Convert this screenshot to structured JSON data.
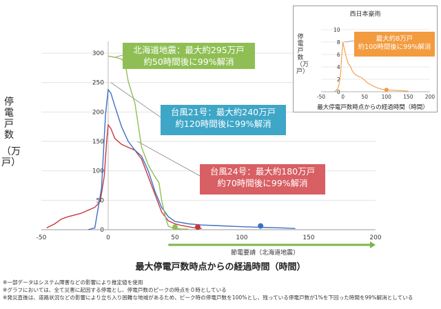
{
  "chart_data": [
    {
      "type": "line",
      "xlabel": "最大停電戸数時点からの経過時間（時間）",
      "ylabel": "停電戸数（万戸）",
      "xlim": [
        -50,
        200
      ],
      "ylim": [
        0,
        320
      ],
      "xticks": [
        "-50",
        "0",
        "50",
        "100",
        "150",
        "200"
      ],
      "yticks": [
        "0",
        "50",
        "100",
        "150",
        "200",
        "250",
        "300"
      ],
      "series": [
        {
          "name": "北海道地震",
          "color": "#8fbf54",
          "x": [
            0,
            5,
            10,
            12,
            13,
            15,
            20,
            22,
            25,
            30,
            35,
            38,
            40,
            43,
            45,
            48,
            50,
            55,
            60
          ],
          "y": [
            295,
            293,
            290,
            285,
            278,
            252,
            215,
            185,
            140,
            110,
            90,
            80,
            50,
            20,
            6,
            3,
            2,
            1,
            1
          ],
          "marker": {
            "x": 50,
            "y": 2
          }
        },
        {
          "name": "台風21号",
          "color": "#3f6fc3",
          "x": [
            -15,
            -10,
            -5,
            -2,
            0,
            2,
            5,
            10,
            15,
            20,
            25,
            30,
            35,
            40,
            45,
            50,
            60,
            70,
            80,
            100,
            115,
            130,
            140
          ],
          "y": [
            0,
            3,
            70,
            195,
            238,
            232,
            210,
            175,
            150,
            135,
            125,
            100,
            65,
            38,
            22,
            14,
            10,
            8,
            7,
            5,
            4,
            3,
            2
          ],
          "marker": {
            "x": 114,
            "y": 4
          }
        },
        {
          "name": "台風24号",
          "color": "#c8383b",
          "x": [
            -46,
            -40,
            -35,
            -30,
            -25,
            -20,
            -15,
            -10,
            -6,
            -3,
            -1,
            0,
            2,
            5,
            10,
            15,
            20,
            25,
            30,
            35,
            40,
            45,
            50,
            55,
            60,
            65,
            70
          ],
          "y": [
            3,
            10,
            18,
            22,
            25,
            28,
            33,
            38,
            48,
            90,
            155,
            178,
            172,
            155,
            145,
            140,
            135,
            120,
            90,
            60,
            30,
            15,
            10,
            7,
            5,
            3,
            2
          ],
          "marker": {
            "x": 67,
            "y": 2
          }
        }
      ],
      "annotations": [
        {
          "lines": [
            "北海道地震：最大約295万戸",
            "約50時間後に99%解消"
          ]
        },
        {
          "lines": [
            "台風21号：最大約240万戸",
            "約120時間後に99%解消"
          ]
        },
        {
          "lines": [
            "台風24号：最大約180万戸",
            "約70時間後に99%解消"
          ]
        }
      ],
      "bracket_label": "節電要請（北海道地震）",
      "bracket_range": [
        45,
        200
      ]
    },
    {
      "type": "line",
      "title": "西日本豪雨",
      "xlabel": "最大停電戸数時点からの経過時間（時間）",
      "ylabel": "停電戸数（万戸）",
      "xlim": [
        -50,
        200
      ],
      "ylim": [
        0,
        10
      ],
      "xticks": [
        "-50",
        "0",
        "50",
        "100",
        "150",
        "200"
      ],
      "yticks": [
        "0",
        "2",
        "4",
        "6",
        "8",
        "10"
      ],
      "series": [
        {
          "name": "西日本豪雨",
          "color": "#f39b3f",
          "x": [
            -20,
            -15,
            -10,
            -8,
            -5,
            -3,
            0,
            3,
            8,
            12,
            18,
            22,
            28,
            35,
            42,
            48,
            55,
            60,
            70,
            80,
            90,
            100,
            150
          ],
          "y": [
            0,
            0.2,
            0.8,
            1.5,
            3,
            5.5,
            8,
            7,
            5.5,
            4.6,
            4.0,
            3.3,
            2.8,
            2.5,
            2.3,
            2.0,
            1.5,
            1.3,
            0.9,
            0.6,
            0.4,
            0.3,
            0.1
          ],
          "marker": {
            "x": 100,
            "y": 0.3
          }
        }
      ],
      "annotation": [
        "最大約8万戸",
        "約100時間後に99%解消"
      ]
    }
  ],
  "notes": [
    "※一部データはシステム障害などの影響により推定値を使用",
    "※グラフにおいては、全て災害に起因する停電とし、停電戸数のピークの時点を０時としている",
    "※発災直後は、道路状況などの影響により立ち入り困難な地域があるため、ピーク時の停電戸数を100%とし、残っている停電戸数が1%を下回った時間を99%解消としている"
  ],
  "ylabel_chars": [
    "停",
    "電",
    "戸",
    "数",
    "（万",
    "戸）"
  ],
  "inset_ylabel_chars": [
    "停",
    "電",
    "戸",
    "数",
    "（万",
    "戸）"
  ]
}
